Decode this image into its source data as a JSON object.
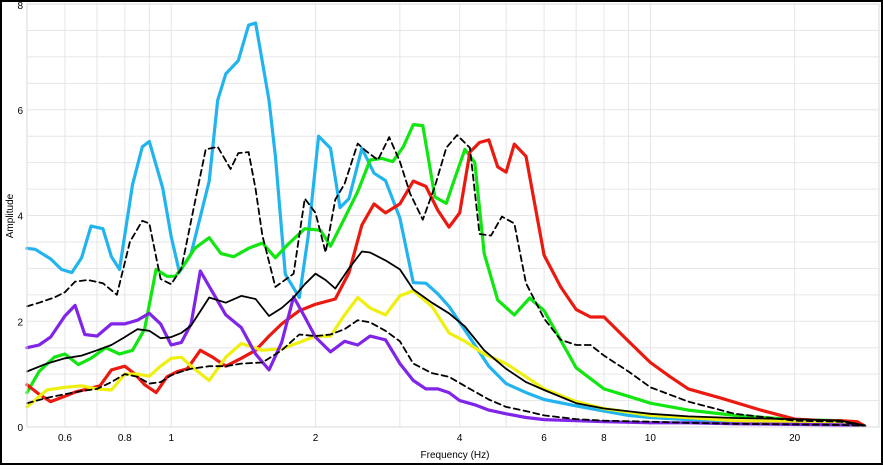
{
  "chart_data": {
    "type": "line",
    "title": "",
    "xlabel": "Frequency (Hz)",
    "ylabel": "Amplitude",
    "xscale": "log",
    "xlim": [
      0.5,
      30
    ],
    "ylim": [
      0,
      8
    ],
    "grid": true,
    "legend": "none",
    "x_tick_labels": [
      {
        "value": 0.6,
        "label": "0.6"
      },
      {
        "value": 0.8,
        "label": "0.8"
      },
      {
        "value": 1,
        "label": "1"
      },
      {
        "value": 2,
        "label": "2"
      },
      {
        "value": 4,
        "label": "4"
      },
      {
        "value": 6,
        "label": "6"
      },
      {
        "value": 8,
        "label": "8"
      },
      {
        "value": 10,
        "label": "10"
      },
      {
        "value": 20,
        "label": "20"
      }
    ],
    "y_tick_labels": [
      {
        "value": 0,
        "label": "0"
      },
      {
        "value": 2,
        "label": "2"
      },
      {
        "value": 4,
        "label": "4"
      },
      {
        "value": 6,
        "label": "6"
      },
      {
        "value": 8,
        "label": "8"
      }
    ],
    "series": [
      {
        "color": "#22b4ee",
        "dash": "solid",
        "width": 3.2,
        "x": [
          0.5,
          0.52,
          0.56,
          0.59,
          0.62,
          0.65,
          0.68,
          0.72,
          0.75,
          0.78,
          0.83,
          0.87,
          0.9,
          0.96,
          1.0,
          1.04,
          1.1,
          1.2,
          1.25,
          1.3,
          1.38,
          1.45,
          1.5,
          1.6,
          1.65,
          1.73,
          1.85,
          1.93,
          2.03,
          2.15,
          2.25,
          2.35,
          2.5,
          2.65,
          2.8,
          3.0,
          3.2,
          3.4,
          3.6,
          3.8,
          4.0,
          4.3,
          4.6,
          5.0,
          5.5,
          6.0,
          7.0,
          8.0,
          9.0,
          10.0,
          12.0,
          15.0,
          20.0,
          25.0,
          28.0
        ],
        "y": [
          3.38,
          3.36,
          3.18,
          2.98,
          2.92,
          3.2,
          3.8,
          3.75,
          3.22,
          2.98,
          4.58,
          5.3,
          5.4,
          4.52,
          3.6,
          2.93,
          3.28,
          4.65,
          6.18,
          6.68,
          6.93,
          7.6,
          7.64,
          6.18,
          5.12,
          2.89,
          2.45,
          3.6,
          5.5,
          5.27,
          4.15,
          4.32,
          5.27,
          4.8,
          4.66,
          3.95,
          2.73,
          2.72,
          2.52,
          2.28,
          1.98,
          1.55,
          1.15,
          0.82,
          0.65,
          0.52,
          0.4,
          0.3,
          0.22,
          0.18,
          0.14,
          0.1,
          0.1,
          0.1,
          0.02
        ]
      },
      {
        "color": "#11e611",
        "dash": "solid",
        "width": 3.2,
        "x": [
          0.5,
          0.53,
          0.57,
          0.6,
          0.64,
          0.68,
          0.73,
          0.78,
          0.83,
          0.88,
          0.93,
          0.98,
          1.02,
          1.07,
          1.12,
          1.2,
          1.27,
          1.35,
          1.45,
          1.55,
          1.65,
          1.75,
          1.9,
          2.05,
          2.15,
          2.3,
          2.45,
          2.6,
          2.75,
          2.9,
          3.05,
          3.2,
          3.35,
          3.55,
          3.75,
          3.9,
          4.1,
          4.3,
          4.5,
          4.8,
          5.2,
          5.6,
          6.0,
          7.0,
          8.0,
          9.0,
          10.0,
          12.0,
          15.0,
          20.0,
          25.0,
          28.0
        ],
        "y": [
          0.65,
          1.05,
          1.32,
          1.38,
          1.18,
          1.3,
          1.5,
          1.38,
          1.45,
          1.85,
          2.98,
          2.85,
          2.85,
          3.1,
          3.38,
          3.58,
          3.28,
          3.22,
          3.38,
          3.48,
          3.2,
          3.45,
          3.75,
          3.72,
          3.42,
          3.95,
          4.45,
          5.05,
          5.08,
          5.02,
          5.3,
          5.72,
          5.7,
          4.35,
          4.23,
          4.68,
          5.25,
          5.0,
          3.28,
          2.4,
          2.12,
          2.44,
          2.2,
          1.12,
          0.72,
          0.58,
          0.45,
          0.32,
          0.22,
          0.14,
          0.12,
          0.02
        ]
      },
      {
        "color": "#ea1a10",
        "dash": "solid",
        "width": 3.2,
        "x": [
          0.5,
          0.53,
          0.56,
          0.6,
          0.63,
          0.67,
          0.71,
          0.75,
          0.8,
          0.84,
          0.88,
          0.93,
          0.98,
          1.03,
          1.08,
          1.15,
          1.22,
          1.3,
          1.4,
          1.5,
          1.6,
          1.7,
          1.85,
          2.0,
          2.2,
          2.35,
          2.5,
          2.65,
          2.8,
          3.0,
          3.2,
          3.4,
          3.6,
          3.8,
          4.0,
          4.2,
          4.4,
          4.6,
          4.8,
          5.0,
          5.2,
          5.5,
          6.0,
          6.5,
          7.0,
          7.5,
          8.0,
          9.0,
          10.0,
          11.0,
          12.0,
          14.0,
          17.0,
          20.0,
          23.0,
          25.0,
          27.0,
          28.0
        ],
        "y": [
          0.8,
          0.62,
          0.48,
          0.58,
          0.66,
          0.72,
          0.78,
          1.08,
          1.15,
          1.0,
          0.8,
          0.65,
          0.95,
          1.05,
          1.1,
          1.45,
          1.32,
          1.15,
          1.3,
          1.45,
          1.72,
          1.95,
          2.2,
          2.32,
          2.42,
          2.92,
          3.82,
          4.22,
          4.05,
          4.22,
          4.65,
          4.55,
          4.1,
          3.78,
          4.05,
          5.2,
          5.38,
          5.43,
          4.92,
          4.82,
          5.35,
          5.12,
          3.25,
          2.65,
          2.22,
          2.08,
          2.08,
          1.62,
          1.22,
          0.95,
          0.72,
          0.55,
          0.32,
          0.15,
          0.12,
          0.12,
          0.1,
          0.02
        ]
      },
      {
        "color": "#efef10",
        "dash": "solid",
        "width": 3.2,
        "x": [
          0.5,
          0.55,
          0.6,
          0.65,
          0.7,
          0.75,
          0.8,
          0.85,
          0.9,
          0.95,
          1.0,
          1.05,
          1.1,
          1.2,
          1.3,
          1.4,
          1.55,
          1.7,
          1.85,
          2.0,
          2.15,
          2.3,
          2.45,
          2.6,
          2.8,
          3.0,
          3.2,
          3.5,
          3.8,
          4.1,
          4.5,
          5.0,
          5.5,
          6.0,
          7.0,
          8.0,
          10.0,
          12.0,
          15.0,
          20.0,
          25.0,
          28.0
        ],
        "y": [
          0.38,
          0.7,
          0.75,
          0.78,
          0.72,
          0.7,
          1.0,
          1.0,
          0.96,
          1.15,
          1.3,
          1.32,
          1.15,
          0.88,
          1.32,
          1.58,
          1.45,
          1.48,
          1.6,
          1.72,
          1.72,
          2.12,
          2.45,
          2.25,
          2.12,
          2.48,
          2.58,
          2.28,
          1.78,
          1.62,
          1.38,
          1.2,
          0.95,
          0.72,
          0.48,
          0.35,
          0.22,
          0.18,
          0.12,
          0.1,
          0.08,
          0.02
        ]
      },
      {
        "color": "#8024e8",
        "dash": "solid",
        "width": 3.2,
        "x": [
          0.5,
          0.53,
          0.56,
          0.6,
          0.63,
          0.66,
          0.7,
          0.75,
          0.8,
          0.85,
          0.9,
          0.95,
          1.0,
          1.05,
          1.1,
          1.15,
          1.22,
          1.3,
          1.4,
          1.5,
          1.6,
          1.7,
          1.8,
          1.9,
          2.0,
          2.15,
          2.3,
          2.45,
          2.6,
          2.8,
          3.0,
          3.2,
          3.4,
          3.6,
          3.8,
          4.0,
          4.3,
          4.6,
          5.0,
          5.5,
          6.0,
          7.0,
          8.0,
          10.0,
          12.0,
          15.0,
          20.0,
          25.0,
          28.0
        ],
        "y": [
          1.5,
          1.55,
          1.7,
          2.1,
          2.3,
          1.75,
          1.72,
          1.95,
          1.95,
          2.02,
          2.15,
          1.95,
          1.55,
          1.6,
          1.95,
          2.95,
          2.55,
          2.12,
          1.88,
          1.38,
          1.08,
          1.6,
          2.46,
          2.08,
          1.7,
          1.42,
          1.62,
          1.55,
          1.72,
          1.65,
          1.2,
          0.88,
          0.72,
          0.72,
          0.65,
          0.5,
          0.42,
          0.32,
          0.25,
          0.18,
          0.14,
          0.12,
          0.1,
          0.08,
          0.08,
          0.06,
          0.05,
          0.04,
          0.02
        ]
      },
      {
        "color": "#000000",
        "dash": "solid",
        "width": 1.8,
        "x": [
          0.5,
          0.55,
          0.6,
          0.65,
          0.7,
          0.75,
          0.8,
          0.85,
          0.9,
          0.95,
          1.0,
          1.05,
          1.1,
          1.2,
          1.3,
          1.4,
          1.5,
          1.6,
          1.7,
          1.8,
          1.9,
          2.0,
          2.1,
          2.2,
          2.35,
          2.5,
          2.6,
          2.8,
          3.0,
          3.2,
          3.5,
          3.8,
          4.1,
          4.5,
          5.0,
          5.5,
          6.0,
          7.0,
          8.0,
          10.0,
          12.0,
          15.0,
          20.0,
          25.0,
          28.0
        ],
        "y": [
          1.05,
          1.2,
          1.3,
          1.35,
          1.45,
          1.55,
          1.7,
          1.85,
          1.82,
          1.68,
          1.7,
          1.78,
          1.92,
          2.45,
          2.35,
          2.48,
          2.42,
          2.1,
          2.25,
          2.45,
          2.7,
          2.9,
          2.78,
          2.62,
          3.0,
          3.32,
          3.3,
          3.15,
          2.98,
          2.6,
          2.35,
          2.15,
          1.9,
          1.45,
          1.1,
          0.85,
          0.7,
          0.45,
          0.35,
          0.25,
          0.2,
          0.17,
          0.15,
          0.12,
          0.03
        ]
      },
      {
        "color": "#000000",
        "dash": "dash-upper",
        "width": 1.8,
        "x": [
          0.5,
          0.53,
          0.57,
          0.6,
          0.63,
          0.67,
          0.72,
          0.77,
          0.82,
          0.87,
          0.9,
          0.95,
          1.0,
          1.05,
          1.1,
          1.18,
          1.25,
          1.33,
          1.38,
          1.45,
          1.5,
          1.55,
          1.65,
          1.8,
          1.9,
          2.0,
          2.1,
          2.2,
          2.3,
          2.45,
          2.55,
          2.7,
          2.85,
          3.0,
          3.15,
          3.35,
          3.55,
          3.75,
          3.95,
          4.2,
          4.4,
          4.65,
          4.9,
          5.2,
          5.5,
          6.0,
          6.5,
          7.0,
          7.5,
          8.0,
          9.0,
          10.0,
          12.0,
          15.0,
          20.0,
          25.0,
          28.0
        ],
        "y": [
          2.28,
          2.35,
          2.45,
          2.55,
          2.75,
          2.78,
          2.72,
          2.5,
          3.5,
          3.9,
          3.85,
          2.8,
          2.7,
          3.0,
          3.9,
          5.25,
          5.3,
          4.88,
          5.18,
          5.2,
          4.5,
          3.62,
          2.65,
          2.9,
          4.32,
          4.05,
          3.3,
          4.3,
          4.6,
          5.36,
          5.22,
          5.05,
          5.48,
          5.02,
          4.42,
          3.92,
          4.55,
          5.28,
          5.52,
          5.28,
          3.65,
          3.62,
          3.98,
          3.85,
          2.72,
          2.05,
          1.65,
          1.55,
          1.55,
          1.35,
          1.05,
          0.75,
          0.48,
          0.25,
          0.12,
          0.1,
          0.02
        ]
      },
      {
        "color": "#000000",
        "dash": "dash-lower",
        "width": 1.8,
        "x": [
          0.5,
          0.55,
          0.6,
          0.65,
          0.7,
          0.75,
          0.8,
          0.85,
          0.9,
          0.95,
          1.0,
          1.05,
          1.1,
          1.2,
          1.3,
          1.4,
          1.55,
          1.7,
          1.85,
          2.0,
          2.15,
          2.3,
          2.45,
          2.6,
          2.8,
          3.0,
          3.2,
          3.5,
          3.8,
          4.2,
          4.6,
          5.0,
          5.5,
          6.0,
          7.0,
          8.0,
          10.0,
          12.0,
          15.0,
          20.0,
          25.0,
          28.0
        ],
        "y": [
          0.45,
          0.55,
          0.62,
          0.68,
          0.72,
          0.85,
          1.0,
          0.95,
          0.82,
          0.85,
          0.98,
          1.05,
          1.1,
          1.15,
          1.15,
          1.2,
          1.22,
          1.45,
          1.75,
          1.72,
          1.75,
          1.85,
          2.02,
          1.98,
          1.82,
          1.62,
          1.2,
          1.02,
          0.95,
          0.72,
          0.52,
          0.38,
          0.3,
          0.22,
          0.15,
          0.12,
          0.1,
          0.08,
          0.06,
          0.05,
          0.04,
          0.02
        ]
      }
    ]
  }
}
